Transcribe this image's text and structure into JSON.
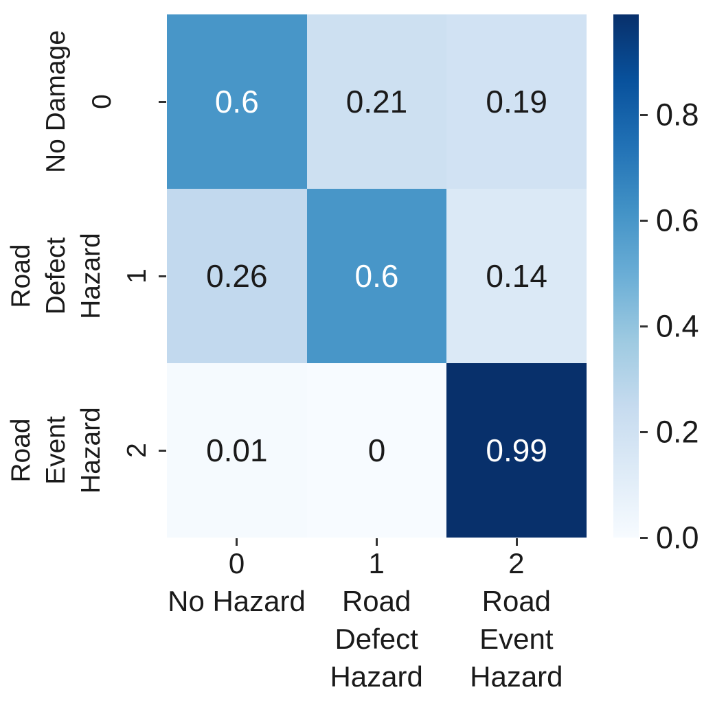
{
  "figure": {
    "description": "Normalized confusion matrix heatmap for road hazard classification",
    "background_color": "#ffffff",
    "text_color": "#1a1a1a"
  },
  "chart_data": {
    "type": "heatmap",
    "title": "",
    "xlabel": "",
    "ylabel": "",
    "matrix": [
      [
        0.6,
        0.21,
        0.19
      ],
      [
        0.26,
        0.6,
        0.14
      ],
      [
        0.01,
        0,
        0.99
      ]
    ],
    "cell_labels": [
      [
        "0.6",
        "0.21",
        "0.19"
      ],
      [
        "0.26",
        "0.6",
        "0.14"
      ],
      [
        "0.01",
        "0",
        "0.99"
      ]
    ],
    "x_ticks": [
      {
        "value": "0",
        "lines": [
          "No Hazard"
        ]
      },
      {
        "value": "1",
        "lines": [
          "Road",
          "Defect",
          "Hazard"
        ]
      },
      {
        "value": "2",
        "lines": [
          "Road",
          "Event",
          "Hazard"
        ]
      }
    ],
    "y_ticks": [
      {
        "value": "0",
        "lines": [
          "No Damage"
        ]
      },
      {
        "value": "1",
        "lines": [
          "Road",
          "Defect",
          "Hazard"
        ]
      },
      {
        "value": "2",
        "lines": [
          "Road",
          "Event",
          "Hazard"
        ]
      }
    ],
    "vmin": 0,
    "vmax": 0.99,
    "grid": false,
    "colormap": {
      "name": "Blues",
      "stops": [
        [
          0.0,
          "#f7fbff"
        ],
        [
          0.125,
          "#deebf7"
        ],
        [
          0.25,
          "#c6dbef"
        ],
        [
          0.375,
          "#9ecae1"
        ],
        [
          0.5,
          "#6baed6"
        ],
        [
          0.625,
          "#4292c6"
        ],
        [
          0.75,
          "#2171b5"
        ],
        [
          0.875,
          "#08519c"
        ],
        [
          1.0,
          "#08306b"
        ]
      ]
    },
    "annotation_text_colors": {
      "light": "#ffffff",
      "dark": "#1a1a1a"
    },
    "colorbar": {
      "position": "right",
      "ticks": [
        {
          "label": "0.0",
          "value": 0.0
        },
        {
          "label": "0.2",
          "value": 0.2
        },
        {
          "label": "0.4",
          "value": 0.4
        },
        {
          "label": "0.6",
          "value": 0.6
        },
        {
          "label": "0.8",
          "value": 0.8
        }
      ]
    }
  }
}
